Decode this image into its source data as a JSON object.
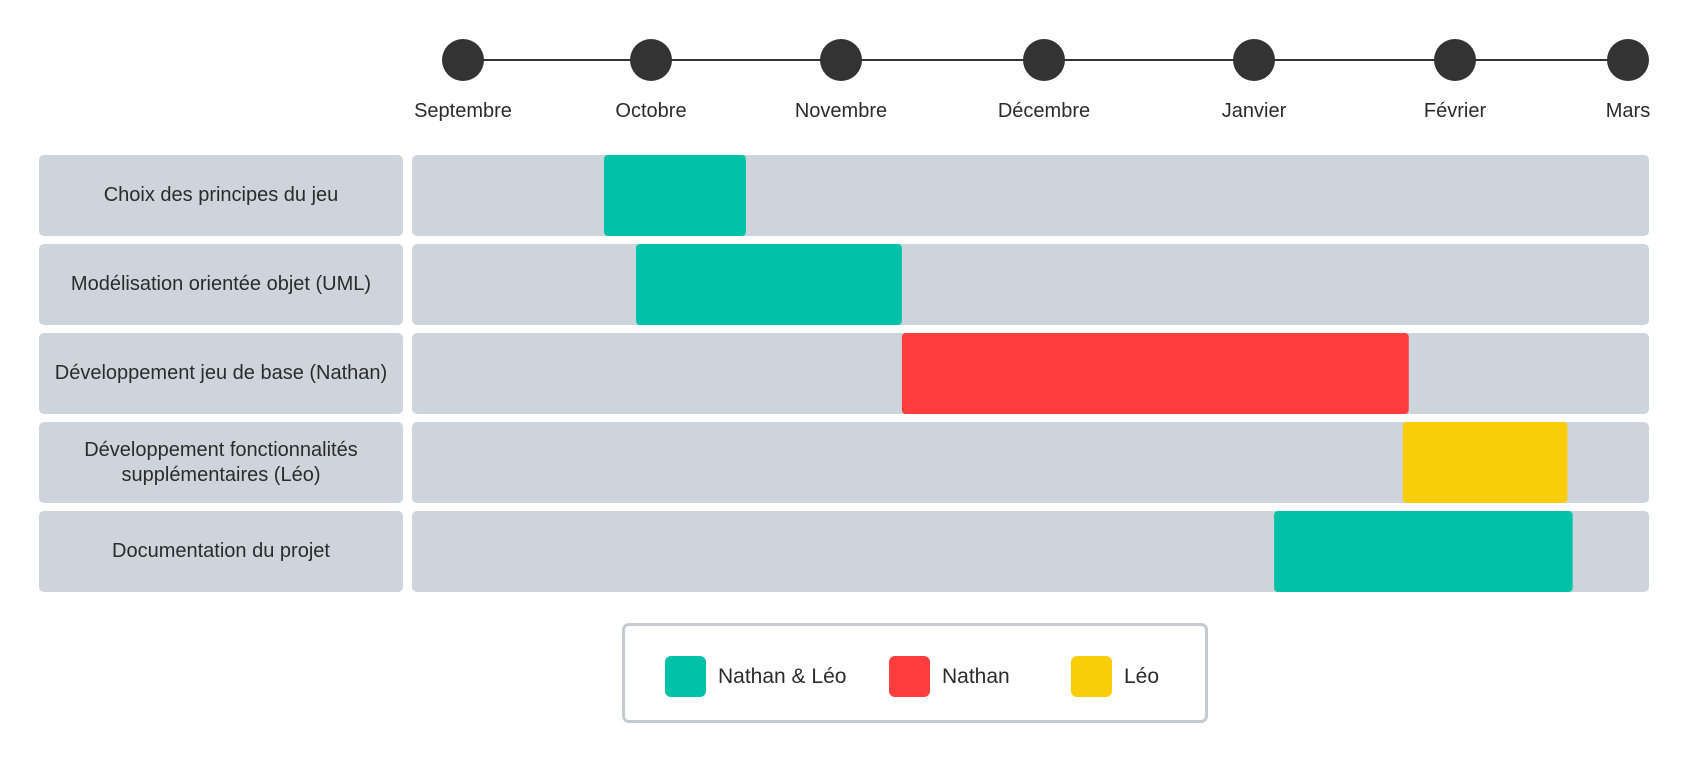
{
  "chart_data": {
    "type": "gantt",
    "months": [
      "Septembre",
      "Octobre",
      "Novembre",
      "Décembre",
      "Janvier",
      "Février",
      "Mars"
    ],
    "tasks": [
      {
        "label": "Choix des principes du jeu",
        "start": 0.75,
        "end": 1.5,
        "color": "#00c2a8",
        "owner": "Nathan & Léo"
      },
      {
        "label": "Modélisation orientée objet (UML)",
        "start": 0.92,
        "end": 2.3,
        "color": "#00c2a8",
        "owner": "Nathan & Léo"
      },
      {
        "label": "Développement jeu de base (Nathan)",
        "start": 2.3,
        "end": 4.77,
        "color": "#ff3d3d",
        "owner": "Nathan"
      },
      {
        "label": "Développement fonctionnalités supplémentaires (Léo)",
        "start": 4.74,
        "end": 5.65,
        "color": "#facd0b",
        "owner": "Léo"
      },
      {
        "label": "Documentation du projet",
        "start": 4.1,
        "end": 5.68,
        "color": "#00c2a8",
        "owner": "Nathan & Léo"
      }
    ],
    "legend": [
      {
        "label": "Nathan & Léo",
        "color": "#00c2a8"
      },
      {
        "label": "Nathan",
        "color": "#ff3d3d"
      },
      {
        "label": "Léo",
        "color": "#facd0b"
      }
    ],
    "colors": {
      "track": "#ced4db",
      "milestone": "#333333",
      "line": "#333333"
    }
  }
}
